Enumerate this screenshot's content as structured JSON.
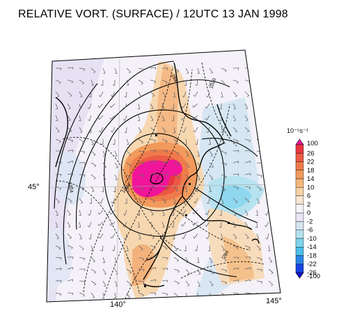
{
  "title": "RELATIVE VORT. (SURFACE) / 12UTC 13 JAN 1998",
  "colorbar": {
    "unit": "10⁻⁵s⁻¹",
    "levels": [
      {
        "label": "100",
        "color": "#f0159a"
      },
      {
        "label": "26",
        "color": "#e8363f"
      },
      {
        "label": "22",
        "color": "#ec5a44"
      },
      {
        "label": "18",
        "color": "#ef7b4c"
      },
      {
        "label": "14",
        "color": "#f29a5c"
      },
      {
        "label": "10",
        "color": "#f5b77a"
      },
      {
        "label": "6",
        "color": "#f7d1a5"
      },
      {
        "label": "2",
        "color": "#f9e6d2"
      },
      {
        "label": "0",
        "color": "#f6f4f8"
      },
      {
        "label": "-2",
        "color": "#eae6f4"
      },
      {
        "label": "-6",
        "color": "#d7e4f2"
      },
      {
        "label": "-10",
        "color": "#b3e1ef"
      },
      {
        "label": "-14",
        "color": "#7fd3ec"
      },
      {
        "label": "-18",
        "color": "#4bbdea"
      },
      {
        "label": "-22",
        "color": "#2a86e6"
      },
      {
        "label": "-26",
        "color": "#1843e0"
      },
      {
        "label": "-100",
        "color": "#1010d0"
      }
    ]
  },
  "map": {
    "lat_labels": [
      "45°"
    ],
    "lon_labels": [
      "140°",
      "145°"
    ],
    "contour_labels": [
      "284",
      "1020",
      "1024",
      "1004",
      "284"
    ]
  }
}
